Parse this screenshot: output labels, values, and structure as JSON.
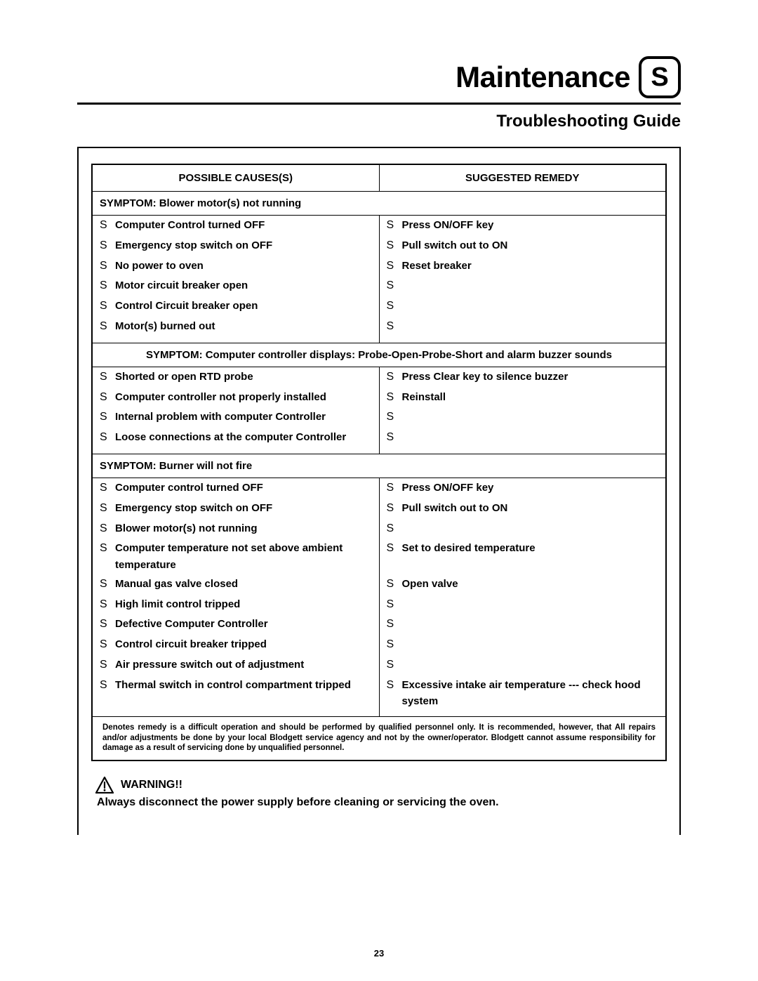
{
  "header": {
    "title": "Maintenance",
    "logo_letter": "S",
    "subtitle": "Troubleshooting Guide"
  },
  "table": {
    "col1_header": "POSSIBLE CAUSES(S)",
    "col2_header": "SUGGESTED REMEDY",
    "bullet": "S",
    "sections": [
      {
        "symptom": "SYMPTOM: Blower motor(s) not running",
        "centered": false,
        "rows": [
          {
            "cause": "Computer Control turned OFF",
            "remedy": "Press ON/OFF key"
          },
          {
            "cause": "Emergency stop switch on OFF",
            "remedy": "Pull switch out to ON"
          },
          {
            "cause": "No power to oven",
            "remedy": "Reset breaker"
          },
          {
            "cause": "Motor circuit breaker open",
            "remedy": ""
          },
          {
            "cause": "Control Circuit breaker open",
            "remedy": ""
          },
          {
            "cause": "Motor(s) burned out",
            "remedy": ""
          }
        ]
      },
      {
        "symptom": "SYMPTOM: Computer controller displays: Probe-Open-Probe-Short and alarm buzzer sounds",
        "centered": true,
        "rows": [
          {
            "cause": "Shorted or open RTD probe",
            "remedy": "Press Clear key to silence buzzer"
          },
          {
            "cause": "Computer controller not properly installed",
            "remedy": "Reinstall"
          },
          {
            "cause": "Internal problem with computer Controller",
            "remedy": ""
          },
          {
            "cause": "Loose connections at the computer Controller",
            "remedy": ""
          }
        ]
      },
      {
        "symptom": "SYMPTOM: Burner will not fire",
        "centered": false,
        "rows": [
          {
            "cause": "Computer control turned OFF",
            "remedy": "Press ON/OFF key"
          },
          {
            "cause": "Emergency stop switch on OFF",
            "remedy": "Pull switch out to ON"
          },
          {
            "cause": "Blower motor(s) not running",
            "remedy": ""
          },
          {
            "cause": "Computer temperature not set above ambient temperature",
            "remedy": "Set to desired temperature"
          },
          {
            "cause": "Manual gas valve closed",
            "remedy": "Open valve"
          },
          {
            "cause": "High limit control tripped",
            "remedy": ""
          },
          {
            "cause": "Defective Computer Controller",
            "remedy": ""
          },
          {
            "cause": "Control circuit breaker tripped",
            "remedy": ""
          },
          {
            "cause": "Air pressure switch out of adjustment",
            "remedy": ""
          },
          {
            "cause": "Thermal switch in control compartment tripped",
            "remedy": "Excessive intake air temperature --- check hood system"
          }
        ]
      }
    ],
    "footnote": "Denotes remedy is a difficult operation and should be performed by qualified personnel only.  It is recommended, however, that All repairs and/or adjustments be done by your local Blodgett service agency and not by the owner/operator.  Blodgett cannot assume responsibility for damage as a result of servicing done by unqualified personnel."
  },
  "warning": {
    "label": "WARNING!!",
    "text": "Always disconnect the power supply before cleaning or servicing the oven."
  },
  "page_number": "23"
}
